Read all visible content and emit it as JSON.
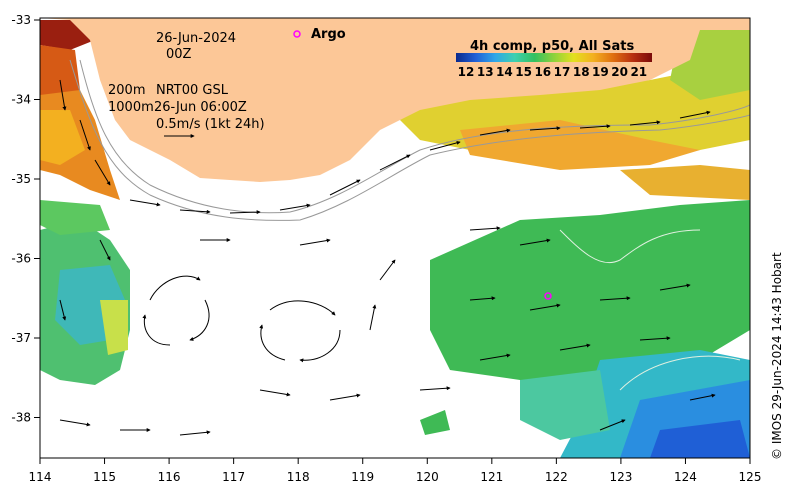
{
  "title": {
    "date": "26-Jun-2024",
    "time": "00Z"
  },
  "legend": {
    "argo_label": "Argo",
    "colorbar_title": "4h comp, p50, All Sats",
    "colorbar_ticks": [
      "12",
      "13",
      "14",
      "15",
      "16",
      "17",
      "18",
      "19",
      "20",
      "21"
    ],
    "colorbar_colors": [
      "#0a2a8c",
      "#1f5fd6",
      "#2fa6e8",
      "#3fd0b0",
      "#33c060",
      "#8ed23b",
      "#e3e020",
      "#f3b020",
      "#e07010",
      "#b83010",
      "#7a0a0a"
    ]
  },
  "info": {
    "line1_left": "200m",
    "line1_right": "NRT00 GSL",
    "line2_left": "1000m",
    "line2_right": "26-Jun 06:00Z",
    "scale_label": "0.5m/s (1kt 24h)"
  },
  "axes": {
    "x_ticks": [
      "114",
      "115",
      "116",
      "117",
      "118",
      "119",
      "120",
      "121",
      "122",
      "123",
      "124",
      "125"
    ],
    "y_ticks": [
      "-33",
      "-34",
      "-35",
      "-36",
      "-37",
      "-38"
    ]
  },
  "credit": "© IMOS 29-Jun-2024 14:43 Hobart",
  "colors": {
    "land": "#fcc797",
    "argo": "#ff00ff"
  }
}
